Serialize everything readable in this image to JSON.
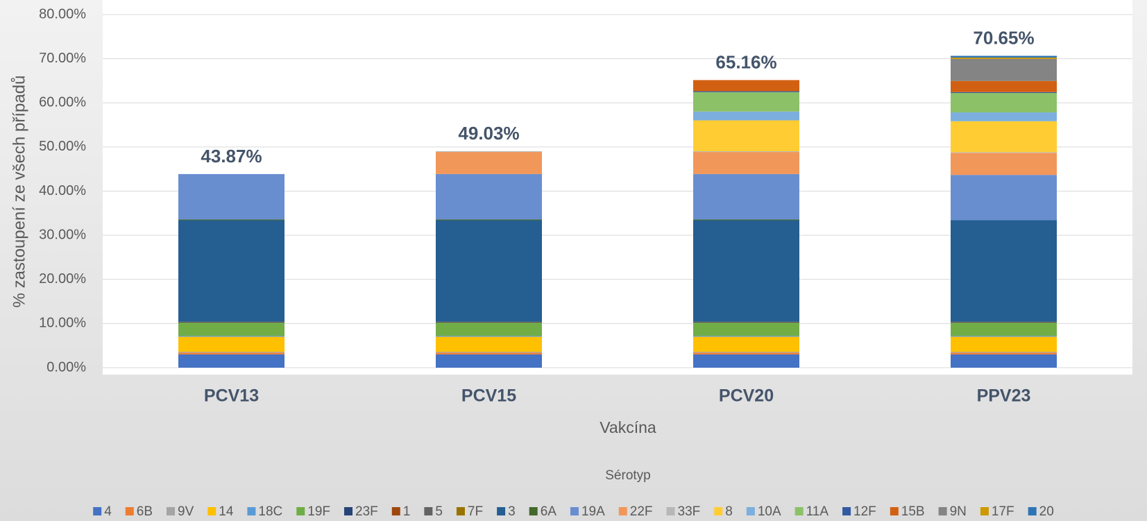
{
  "chart_data": {
    "type": "stacked_bar",
    "y_label": "% zastoupení ze všech případů",
    "x_label": "Vakcína",
    "legend_title": "Sérotyp",
    "categories": [
      "PCV13",
      "PCV15",
      "PCV20",
      "PPV23"
    ],
    "ylim": [
      0,
      80
    ],
    "yticks": [
      {
        "value": 0,
        "label": "0.00%"
      },
      {
        "value": 10,
        "label": "10.00%"
      },
      {
        "value": 20,
        "label": "20.00%"
      },
      {
        "value": 30,
        "label": "30.00%"
      },
      {
        "value": 40,
        "label": "40.00%"
      },
      {
        "value": 50,
        "label": "50.00%"
      },
      {
        "value": 60,
        "label": "60.00%"
      },
      {
        "value": 70,
        "label": "70.00%"
      },
      {
        "value": 80,
        "label": "80.00%"
      }
    ],
    "grid": true,
    "legend": "bottom",
    "totals": {
      "values": [
        43.87,
        49.03,
        65.16,
        70.65
      ],
      "value_labels": [
        "43.87%",
        "49.03%",
        "65.16%",
        "70.65%"
      ]
    },
    "series": [
      {
        "name": "4",
        "color": "#4472c4",
        "values": [
          3.0,
          3.0,
          3.0,
          3.0
        ]
      },
      {
        "name": "6B",
        "color": "#ed7d31",
        "values": [
          0.4,
          0.4,
          0.4,
          0.4
        ]
      },
      {
        "name": "9V",
        "color": "#a5a5a5",
        "values": [
          0.2,
          0.2,
          0.2,
          0.2
        ]
      },
      {
        "name": "14",
        "color": "#ffc000",
        "values": [
          3.4,
          3.4,
          3.4,
          3.4
        ]
      },
      {
        "name": "18C",
        "color": "#5b9bd5",
        "values": [
          0.2,
          0.2,
          0.2,
          0.2
        ]
      },
      {
        "name": "19F",
        "color": "#70ad47",
        "values": [
          3.0,
          3.0,
          3.0,
          3.0
        ]
      },
      {
        "name": "23F",
        "color": "#264478",
        "values": [
          0.1,
          0.1,
          0.1,
          0.1
        ]
      },
      {
        "name": "1",
        "color": "#9e480e",
        "values": [
          0.1,
          0.1,
          0.1,
          0.1
        ]
      },
      {
        "name": "5",
        "color": "#636363",
        "values": [
          null,
          null,
          null,
          null
        ]
      },
      {
        "name": "7F",
        "color": "#997300",
        "values": [
          null,
          null,
          null,
          null
        ]
      },
      {
        "name": "3",
        "color": "#255e91",
        "values": [
          23.0,
          23.0,
          23.0,
          23.0
        ]
      },
      {
        "name": "6A",
        "color": "#43682b",
        "values": [
          0.2,
          0.2,
          0.2,
          null
        ]
      },
      {
        "name": "19A",
        "color": "#698ed0",
        "values": [
          10.27,
          10.27,
          10.27,
          10.27
        ]
      },
      {
        "name": "22F",
        "color": "#f1975a",
        "values": [
          null,
          5.0,
          5.0,
          5.0
        ]
      },
      {
        "name": "33F",
        "color": "#b7b7b7",
        "values": [
          null,
          0.16,
          0.16,
          0.16
        ]
      },
      {
        "name": "8",
        "color": "#ffcd33",
        "values": [
          null,
          null,
          7.0,
          7.0
        ]
      },
      {
        "name": "10A",
        "color": "#7cafdd",
        "values": [
          null,
          null,
          2.0,
          2.0
        ]
      },
      {
        "name": "11A",
        "color": "#8cc168",
        "values": [
          null,
          null,
          4.4,
          4.4
        ]
      },
      {
        "name": "12F",
        "color": "#335aa1",
        "values": [
          null,
          null,
          0.2,
          0.2
        ]
      },
      {
        "name": "15B",
        "color": "#d26012",
        "values": [
          null,
          null,
          2.53,
          2.53
        ]
      },
      {
        "name": "9N",
        "color": "#848484",
        "values": [
          null,
          null,
          null,
          5.0
        ]
      },
      {
        "name": "17F",
        "color": "#cc9a00",
        "values": [
          null,
          null,
          null,
          0.3
        ]
      },
      {
        "name": "20",
        "color": "#2e75b6",
        "values": [
          null,
          null,
          null,
          0.39
        ]
      }
    ]
  }
}
